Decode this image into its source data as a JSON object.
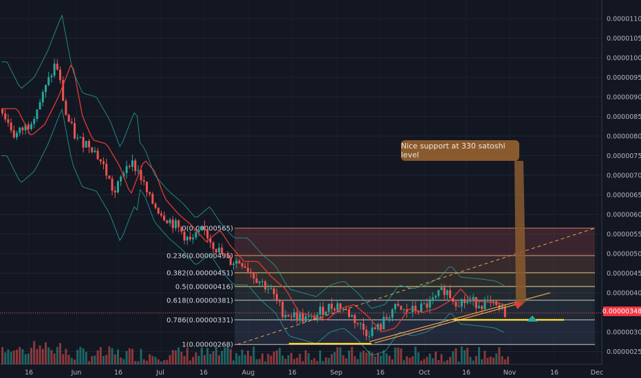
{
  "chart_data": {
    "type": "candlestick",
    "price_axis": {
      "min": 2.25e-06,
      "max": 1.125e-05,
      "ticks": [
        "0.00001100",
        "0.00001050",
        "0.00001000",
        "0.00000950",
        "0.00000900",
        "0.00000850",
        "0.00000800",
        "0.00000750",
        "0.00000700",
        "0.00000650",
        "0.00000600",
        "0.00000550",
        "0.00000500",
        "0.00000450",
        "0.00000400",
        "0.00000350",
        "0.00000300",
        "0.00000250"
      ]
    },
    "time_axis": {
      "labels": [
        "16",
        "Jun",
        "16",
        "Jul",
        "16",
        "Aug",
        "16",
        "Sep",
        "16",
        "Oct",
        "16",
        "Nov",
        "16",
        "Dec"
      ]
    },
    "current_price": "0.00000348",
    "fibonacci": {
      "levels": [
        {
          "ratio": "0",
          "label": "0(0.00000565)",
          "price": 5.65e-06
        },
        {
          "ratio": "0.236",
          "label": "0.236(0.00000495)",
          "price": 4.95e-06
        },
        {
          "ratio": "0.382",
          "label": "0.382(0.00000451)",
          "price": 4.51e-06
        },
        {
          "ratio": "0.5",
          "label": "0.5(0.00000416)",
          "price": 4.16e-06
        },
        {
          "ratio": "0.618",
          "label": "0.618(0.00000381)",
          "price": 3.81e-06
        },
        {
          "ratio": "0.786",
          "label": "0.786(0.00000331)",
          "price": 3.31e-06
        },
        {
          "ratio": "1",
          "label": "1(0.00000268)",
          "price": 2.68e-06
        }
      ]
    },
    "annotation": "Nice support at 330 satoshi level",
    "colors": {
      "background": "#131722",
      "up": "#26a69a",
      "down": "#ef5350",
      "ma": "#e53935",
      "bollinger": "#26a69a",
      "support": "#f5d23c",
      "trend": "#f0a050",
      "price_line": "#f23645"
    }
  }
}
